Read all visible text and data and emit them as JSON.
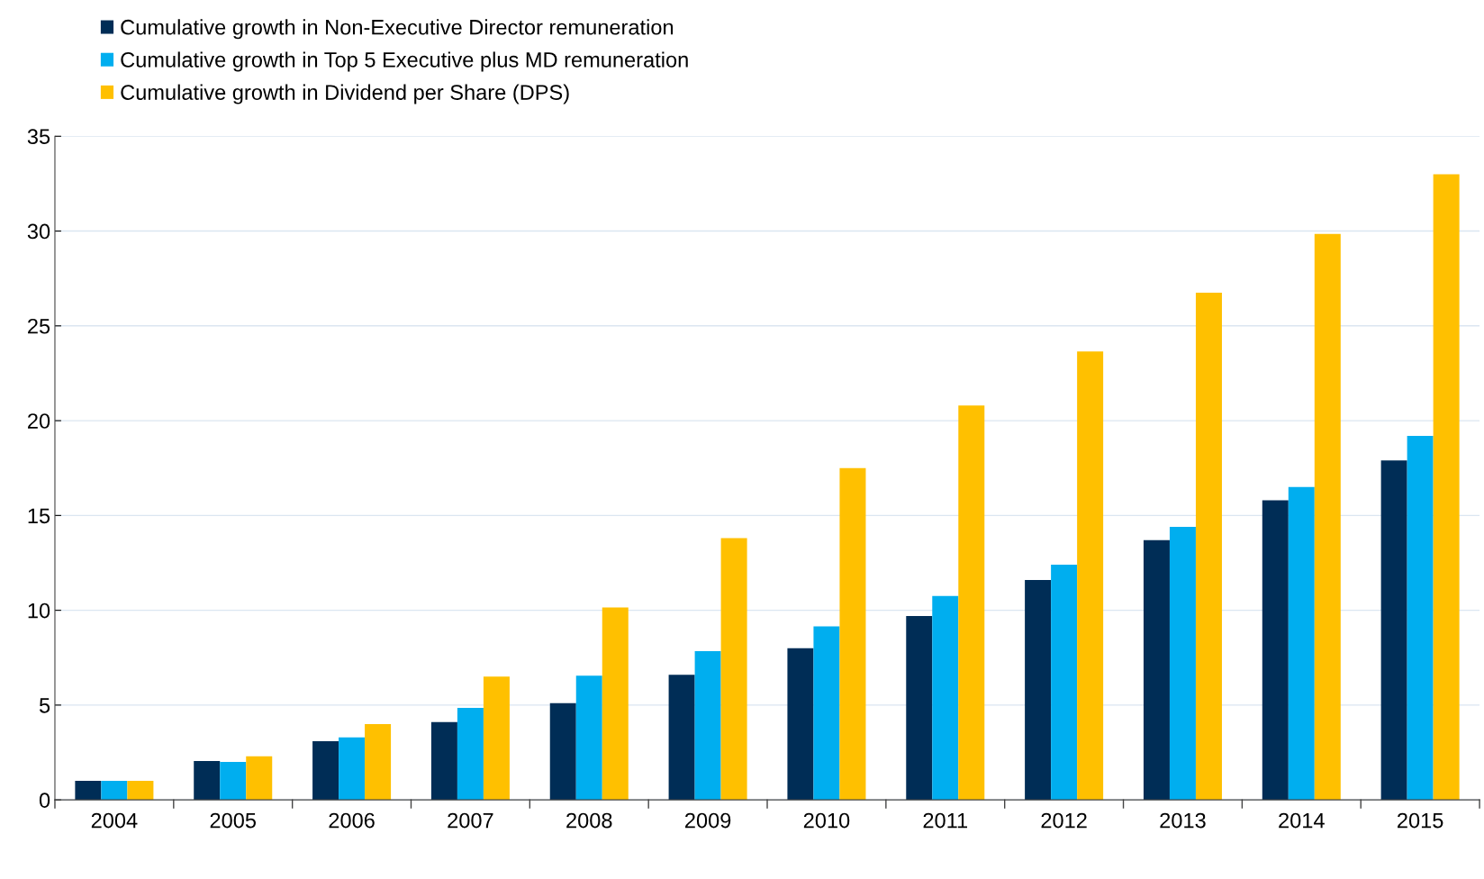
{
  "chart_data": {
    "type": "bar",
    "categories": [
      "2004",
      "2005",
      "2006",
      "2007",
      "2008",
      "2009",
      "2010",
      "2011",
      "2012",
      "2013",
      "2014",
      "2015"
    ],
    "series": [
      {
        "name": "Cumulative growth in Non-Executive Director remuneration",
        "color": "#002d56",
        "values": [
          1.0,
          2.05,
          3.1,
          4.1,
          5.1,
          6.6,
          8.0,
          9.7,
          11.6,
          13.7,
          15.8,
          17.9
        ]
      },
      {
        "name": "Cumulative growth in Top 5 Executive plus MD remuneration",
        "color": "#00aeef",
        "values": [
          1.0,
          2.0,
          3.3,
          4.85,
          6.55,
          7.85,
          9.15,
          10.75,
          12.4,
          14.4,
          16.5,
          19.2
        ]
      },
      {
        "name": "Cumulative growth in Dividend per Share (DPS)",
        "color": "#ffc000",
        "values": [
          1.0,
          2.3,
          4.0,
          6.5,
          10.15,
          13.8,
          17.5,
          20.8,
          23.65,
          26.75,
          29.85,
          33.0
        ]
      }
    ],
    "ylim": [
      0,
      35
    ],
    "yticks": [
      0,
      5,
      10,
      15,
      20,
      25,
      30,
      35
    ],
    "grid": "y",
    "legend": "top left"
  }
}
